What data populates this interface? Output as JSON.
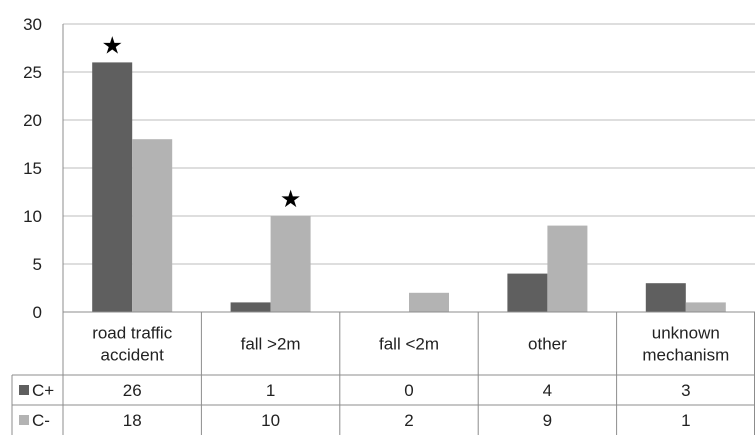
{
  "chart_data": {
    "type": "bar",
    "categories": [
      [
        "road traffic",
        "accident"
      ],
      [
        "fall >2m"
      ],
      [
        "fall <2m"
      ],
      [
        "other"
      ],
      [
        "unknown",
        "mechanism"
      ]
    ],
    "series": [
      {
        "name": "C+",
        "values": [
          26,
          1,
          0,
          4,
          3
        ],
        "color": "#5f5f5f"
      },
      {
        "name": "C-",
        "values": [
          18,
          10,
          2,
          9,
          1
        ],
        "color": "#b3b3b3"
      }
    ],
    "ylim": [
      0,
      30
    ],
    "yticks": [
      0,
      5,
      10,
      15,
      20,
      25,
      30
    ],
    "grid": true,
    "annotations": [
      {
        "category_index": 0,
        "series_index": 0,
        "symbol": "★"
      },
      {
        "category_index": 1,
        "series_index": 1,
        "symbol": "★"
      }
    ],
    "data_table": true
  }
}
